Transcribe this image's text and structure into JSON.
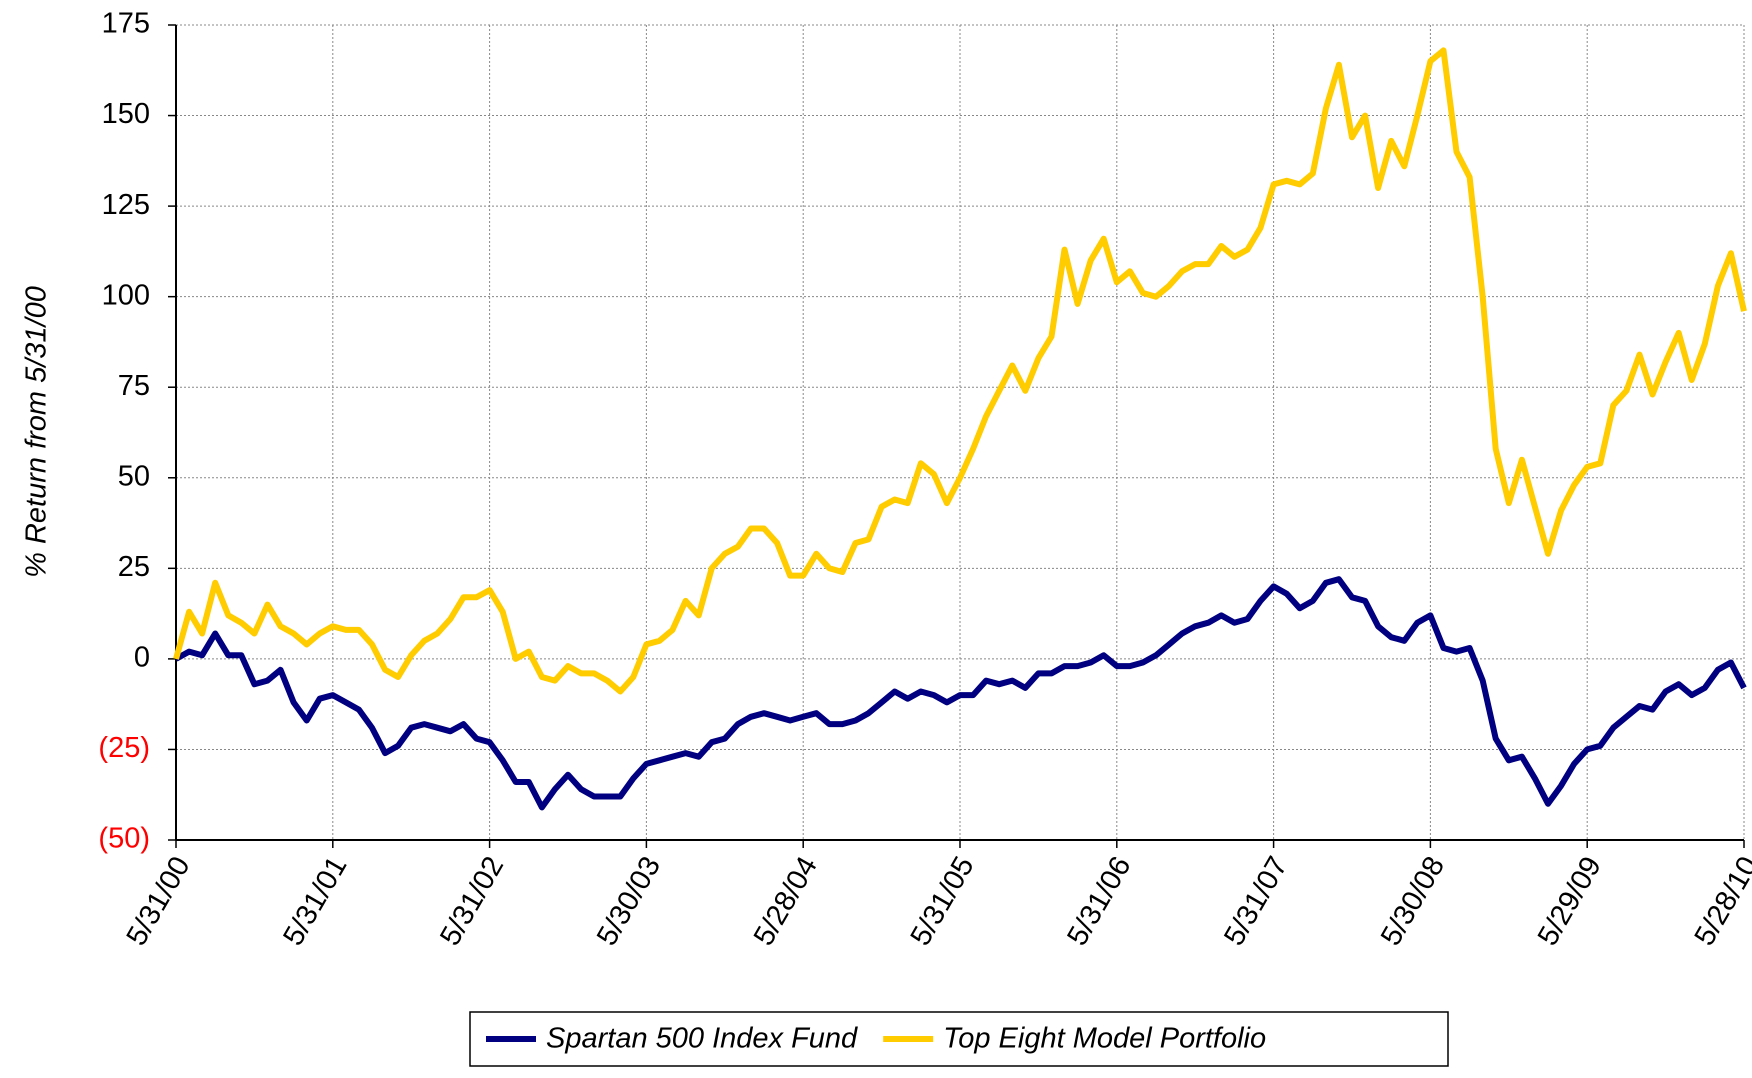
{
  "chart_data": {
    "type": "line",
    "y_label": "% Return from 5/31/00",
    "categories": [
      "5/31/00",
      null,
      null,
      null,
      null,
      null,
      null,
      null,
      null,
      null,
      null,
      null,
      "5/31/01",
      null,
      null,
      null,
      null,
      null,
      null,
      null,
      null,
      null,
      null,
      null,
      "5/31/02",
      null,
      null,
      null,
      null,
      null,
      null,
      null,
      null,
      null,
      null,
      null,
      "5/30/03",
      null,
      null,
      null,
      null,
      null,
      null,
      null,
      null,
      null,
      null,
      null,
      "5/28/04",
      null,
      null,
      null,
      null,
      null,
      null,
      null,
      null,
      null,
      null,
      null,
      "5/31/05",
      null,
      null,
      null,
      null,
      null,
      null,
      null,
      null,
      null,
      null,
      null,
      "5/31/06",
      null,
      null,
      null,
      null,
      null,
      null,
      null,
      null,
      null,
      null,
      null,
      "5/31/07",
      null,
      null,
      null,
      null,
      null,
      null,
      null,
      null,
      null,
      null,
      null,
      "5/30/08",
      null,
      null,
      null,
      null,
      null,
      null,
      null,
      null,
      null,
      null,
      null,
      "5/29/09",
      null,
      null,
      null,
      null,
      null,
      null,
      null,
      null,
      null,
      null,
      null,
      "5/28/10"
    ],
    "series": [
      {
        "name": "Spartan 500 Index Fund",
        "color": "#000080",
        "values": [
          0,
          2,
          1,
          7,
          1,
          1,
          -7,
          -6,
          -3,
          -12,
          -17,
          -11,
          -10,
          -12,
          -14,
          -19,
          -26,
          -24,
          -19,
          -18,
          -19,
          -20,
          -18,
          -22,
          -23,
          -28,
          -34,
          -34,
          -41,
          -36,
          -32,
          -36,
          -38,
          -38,
          -38,
          -33,
          -29,
          -28,
          -27,
          -26,
          -27,
          -23,
          -22,
          -18,
          -16,
          -15,
          -16,
          -17,
          -16,
          -15,
          -18,
          -18,
          -17,
          -15,
          -12,
          -9,
          -11,
          -9,
          -10,
          -12,
          -10,
          -10,
          -6,
          -7,
          -6,
          -8,
          -4,
          -4,
          -2,
          -2,
          -1,
          1,
          -2,
          -2,
          -1,
          1,
          4,
          7,
          9,
          10,
          12,
          10,
          11,
          16,
          20,
          18,
          14,
          16,
          21,
          22,
          17,
          16,
          9,
          6,
          5,
          10,
          12,
          3,
          2,
          3,
          -6,
          -22,
          -28,
          -27,
          -33,
          -40,
          -35,
          -29,
          -25,
          -24,
          -19,
          -16,
          -13,
          -14,
          -9,
          -7,
          -10,
          -8,
          -3,
          -1,
          -8
        ]
      },
      {
        "name": "Top Eight Model Portfolio",
        "color": "#ffcc00",
        "values": [
          0,
          13,
          7,
          21,
          12,
          10,
          7,
          15,
          9,
          7,
          4,
          7,
          9,
          8,
          8,
          4,
          -3,
          -5,
          1,
          5,
          7,
          11,
          17,
          17,
          19,
          13,
          0,
          2,
          -5,
          -6,
          -2,
          -4,
          -4,
          -6,
          -9,
          -5,
          4,
          5,
          8,
          16,
          12,
          25,
          29,
          31,
          36,
          36,
          32,
          23,
          23,
          29,
          25,
          24,
          32,
          33,
          42,
          44,
          43,
          54,
          51,
          43,
          50,
          58,
          67,
          74,
          81,
          74,
          83,
          89,
          113,
          98,
          110,
          116,
          104,
          107,
          101,
          100,
          103,
          107,
          109,
          109,
          114,
          111,
          113,
          119,
          131,
          132,
          131,
          134,
          152,
          164,
          144,
          150,
          130,
          143,
          136,
          150,
          165,
          168,
          140,
          133,
          100,
          58,
          43,
          55,
          42,
          29,
          41,
          48,
          53,
          54,
          70,
          74,
          84,
          73,
          82,
          90,
          77,
          87,
          103,
          112,
          96
        ]
      }
    ],
    "ylim": [
      -50,
      175
    ],
    "yticks": [
      {
        "value": -50,
        "label": "(50)"
      },
      {
        "value": -25,
        "label": "(25)"
      },
      0,
      25,
      50,
      75,
      100,
      125,
      150,
      175
    ],
    "negative_label_color": "#ff0000",
    "grid": true,
    "legend": "bottom"
  }
}
